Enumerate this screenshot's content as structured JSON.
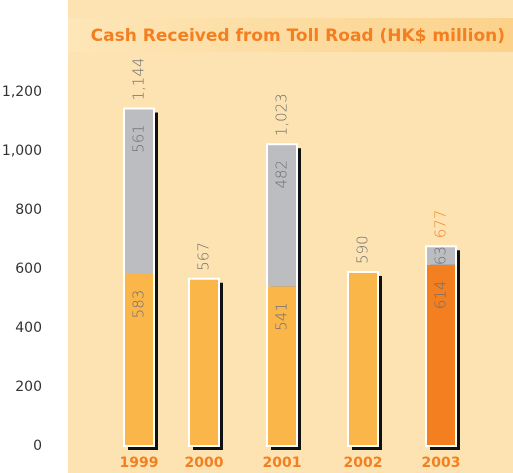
{
  "chart_data": {
    "type": "stacked_bar",
    "title": "Cash Received from Toll Road (HK$ million)",
    "categories": [
      "1999",
      "2000",
      "2001",
      "2002",
      "2003"
    ],
    "series": [
      {
        "colors": [
          "#fbb64a",
          "#fbb64a",
          "#fbb64a",
          "#fbb64a",
          "#f47f20"
        ],
        "values": [
          583,
          567,
          541,
          590,
          614
        ]
      },
      {
        "color": "#bcbdc1",
        "values": [
          561,
          null,
          482,
          null,
          63
        ]
      }
    ],
    "totals": [
      1144,
      567,
      1023,
      590,
      677
    ],
    "total_labels": [
      "1,144",
      "567",
      "1,023",
      "590",
      "677"
    ],
    "total_label_colors": [
      "#6d6e71",
      "#6d6e71",
      "#6d6e71",
      "#6d6e71",
      "#f47f20"
    ],
    "ylim": [
      0,
      1200
    ],
    "yticks": [
      0,
      200,
      400,
      600,
      800,
      {
        "value": 1000,
        "label": "1,000"
      },
      {
        "value": 1200,
        "label": "1,200"
      }
    ]
  }
}
